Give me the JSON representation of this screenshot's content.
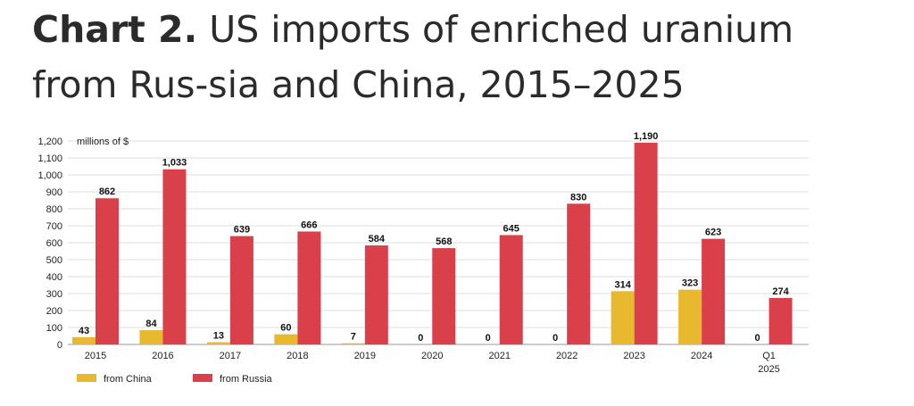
{
  "title": {
    "lead": "Chart 2.",
    "rest": "US imports of enriched uranium from Rus-sia and China, 2015–2025"
  },
  "chart_data": {
    "type": "bar",
    "categories": [
      "2015",
      "2016",
      "2017",
      "2018",
      "2019",
      "2020",
      "2021",
      "2022",
      "2023",
      "2024",
      "Q1 2025"
    ],
    "series": [
      {
        "name": "from China",
        "color": "#e8b92f",
        "values": [
          43,
          84,
          13,
          60,
          7,
          0,
          0,
          0,
          314,
          323,
          0
        ]
      },
      {
        "name": "from Russia",
        "color": "#d9404a",
        "values": [
          862,
          1033,
          639,
          666,
          584,
          568,
          645,
          830,
          1190,
          623,
          274
        ]
      }
    ],
    "ylabel": "millions of $",
    "ylim": [
      0,
      1200
    ],
    "yticks": [
      0,
      100,
      200,
      300,
      400,
      500,
      600,
      700,
      800,
      900,
      1000,
      1100,
      1200
    ],
    "grid": true,
    "legend_position": "bottom-left"
  }
}
